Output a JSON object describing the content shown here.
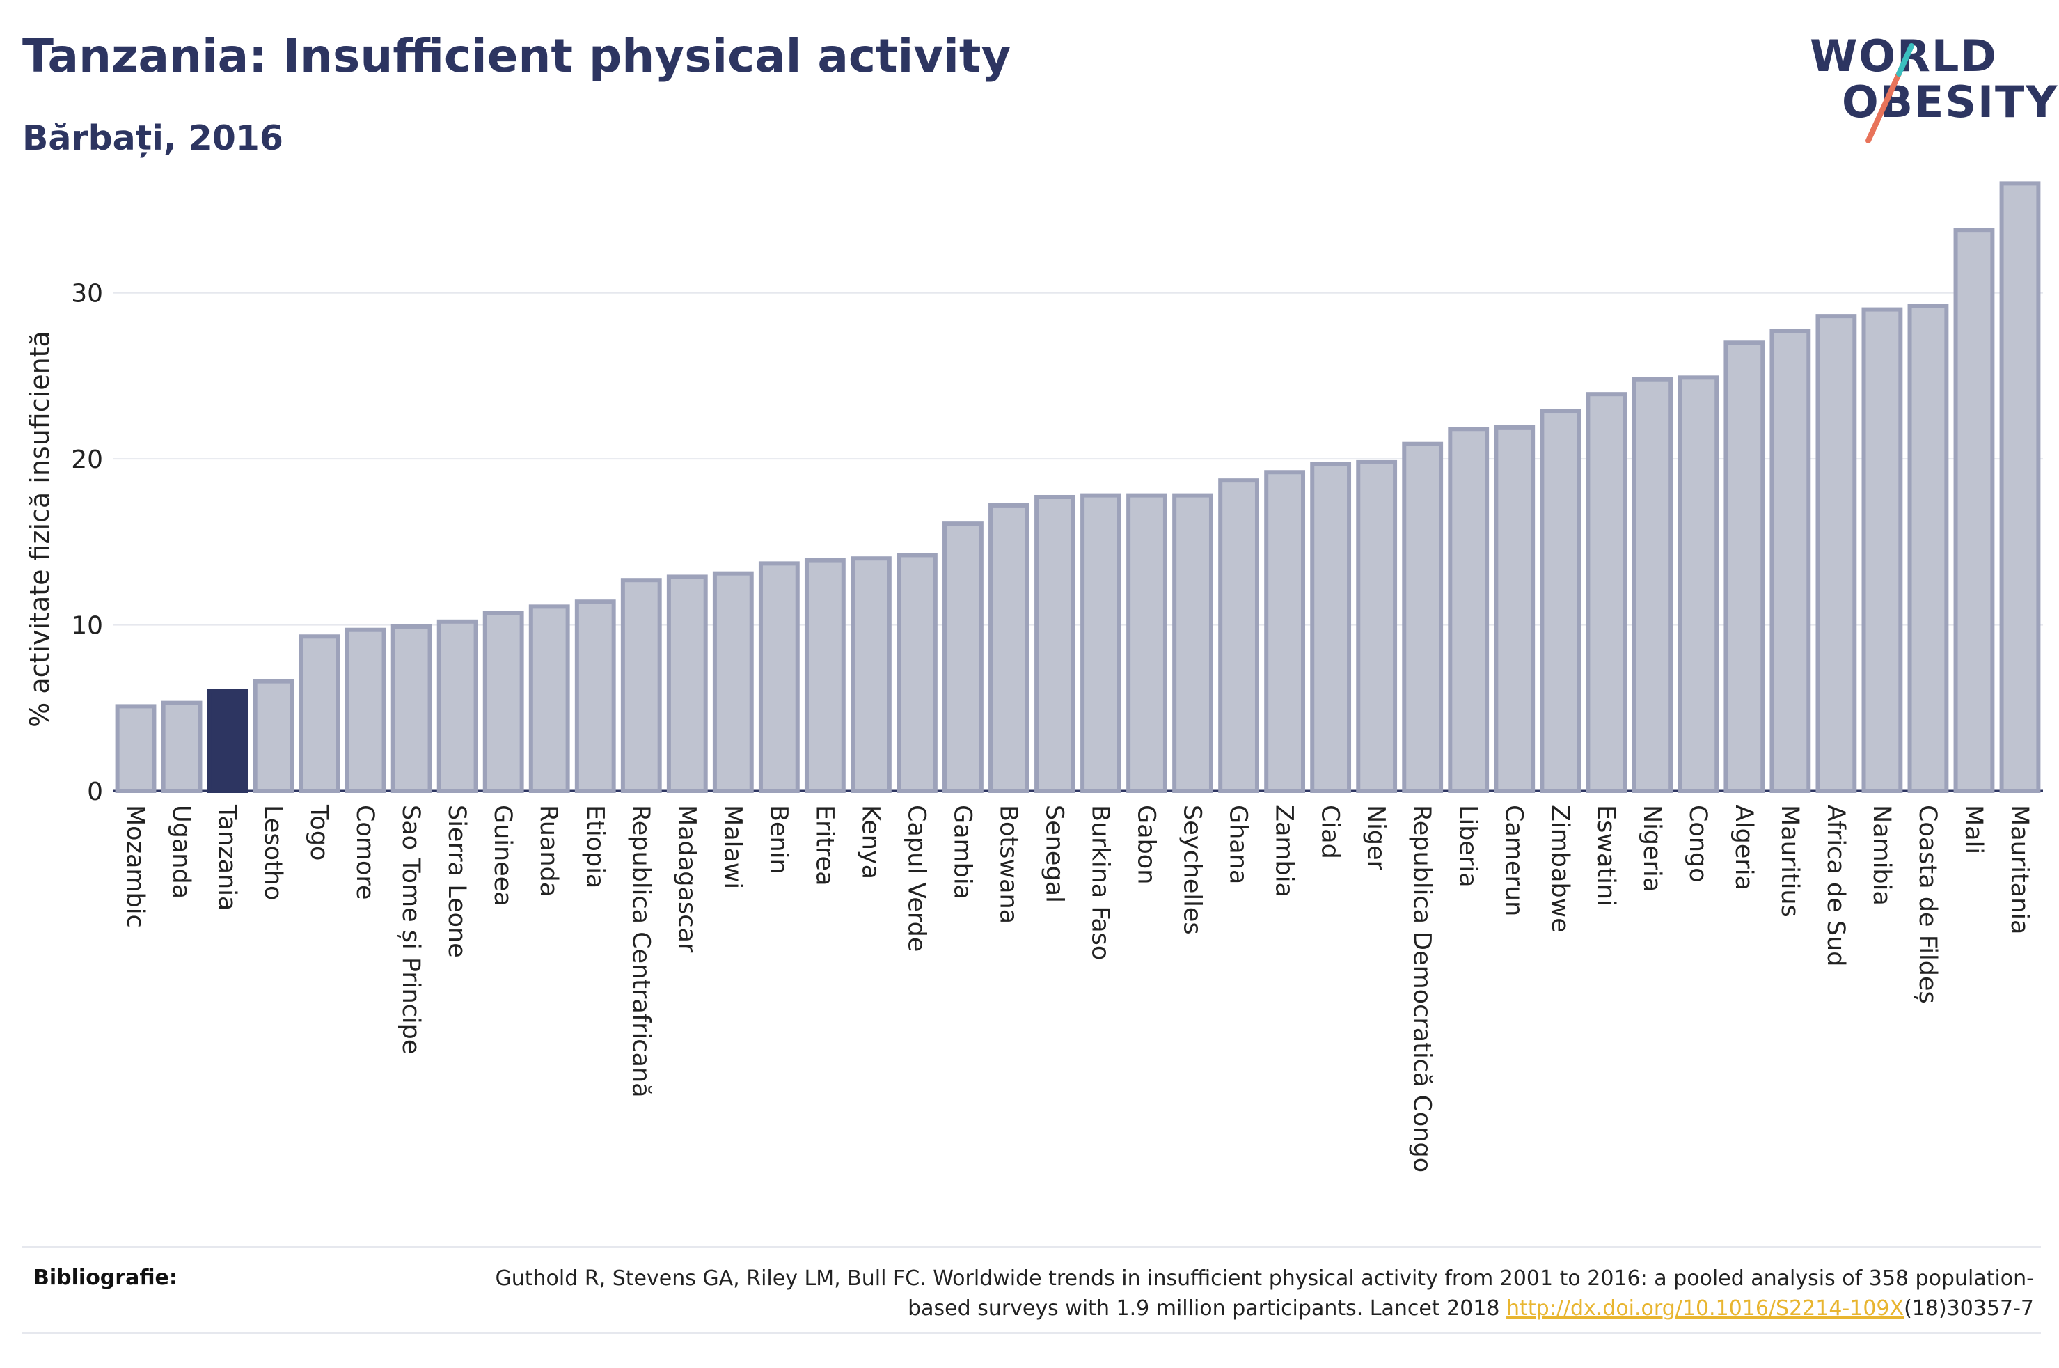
{
  "title": "Tanzania: Insufficient physical activity",
  "subtitle": "Bărbați, 2016",
  "logo": {
    "line1": "WORLD",
    "line2": "OBESITY"
  },
  "colors": {
    "bar": "#bfc3d0",
    "bar_border": "#9da2ba",
    "highlight": "#2d3561",
    "text": "#2d3561",
    "link": "#e8b530"
  },
  "bibliography": {
    "label": "Bibliografie:",
    "text_before": "Guthold R, Stevens GA, Riley LM, Bull FC. Worldwide trends in insufficient physical activity from 2001 to 2016: a pooled analysis of 358 population-based surveys with 1.9 million participants. Lancet 2018 ",
    "link": "http://dx.doi.org/10.1016/S2214-109X",
    "text_after": "(18)30357-7"
  },
  "chart_data": {
    "type": "bar",
    "ylabel": "% activitate fizică insuficientă",
    "ylim": [
      0,
      38
    ],
    "yticks": [
      0,
      10,
      20,
      30
    ],
    "grid": true,
    "highlight": "Tanzania",
    "categories": [
      "Mozambic",
      "Uganda",
      "Tanzania",
      "Lesotho",
      "Togo",
      "Comore",
      "Sao Tome și Principe",
      "Sierra Leone",
      "Guineea",
      "Ruanda",
      "Etiopia",
      "Republica Centrafricană",
      "Madagascar",
      "Malawi",
      "Benin",
      "Eritrea",
      "Kenya",
      "Capul Verde",
      "Gambia",
      "Botswana",
      "Senegal",
      "Burkina Faso",
      "Gabon",
      "Seychelles",
      "Ghana",
      "Zambia",
      "Ciad",
      "Niger",
      "Republica Democratică Congo",
      "Liberia",
      "Camerun",
      "Zimbabwe",
      "Eswatini",
      "Nigeria",
      "Congo",
      "Algeria",
      "Mauritius",
      "Africa de Sud",
      "Namibia",
      "Coasta de Fildeș",
      "Mali",
      "Mauritania"
    ],
    "values": [
      5.1,
      5.3,
      6.0,
      6.6,
      9.3,
      9.7,
      9.9,
      10.2,
      10.7,
      11.1,
      11.4,
      12.7,
      12.9,
      13.1,
      13.7,
      13.9,
      14.0,
      14.2,
      16.1,
      17.2,
      17.7,
      17.8,
      17.8,
      17.8,
      18.7,
      19.2,
      19.7,
      19.8,
      20.9,
      21.8,
      21.9,
      22.9,
      23.9,
      24.8,
      24.9,
      27.0,
      27.7,
      28.6,
      29.0,
      29.2,
      33.8,
      36.6
    ]
  }
}
